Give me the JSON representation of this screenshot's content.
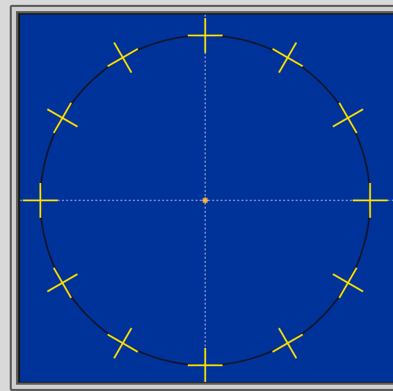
{
  "colors": {
    "page_background": "#d9d9d9",
    "frame": "#5c5c5c",
    "panel_background": "#003399",
    "circle_stroke": "#0f1630",
    "marker": "#ffe000",
    "center_marker": "#ffb347",
    "guide_line": "#ffffff"
  },
  "diagram": {
    "marker_count": 12,
    "marker_icon": "cross-marker-icon",
    "center_icon": "asterisk-icon",
    "guides": "dashed-crosshair"
  }
}
